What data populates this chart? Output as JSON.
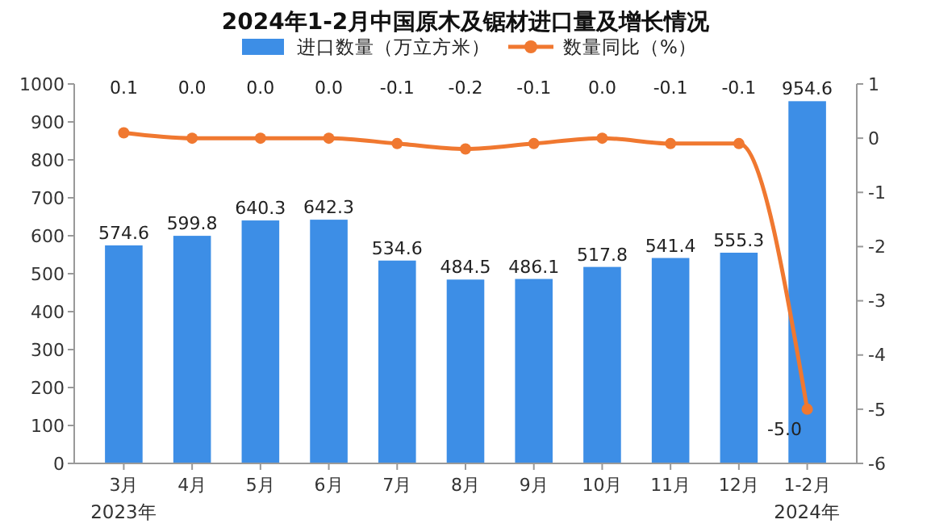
{
  "chart_data": {
    "type": "bar",
    "title": "2024年1-2月中国原木及锯材进口量及增长情况",
    "categories": [
      "3月",
      "4月",
      "5月",
      "6月",
      "7月",
      "8月",
      "9月",
      "10月",
      "11月",
      "12月",
      "1-2月"
    ],
    "series": [
      {
        "name": "进口数量（万立方米）",
        "color": "#3d8ee6",
        "values": [
          574.6,
          599.8,
          640.3,
          642.3,
          534.6,
          484.5,
          486.1,
          517.8,
          541.4,
          555.3,
          954.6
        ],
        "value_labels": [
          "574.6",
          "599.8",
          "640.3",
          "642.3",
          "534.6",
          "484.5",
          "486.1",
          "517.8",
          "541.4",
          "555.3",
          "954.6"
        ]
      },
      {
        "name": "数量同比（%）",
        "type": "line",
        "axis": "y2",
        "color": "#f07830",
        "marker": "circle",
        "values": [
          0.1,
          0.0,
          0.0,
          0.0,
          -0.1,
          -0.2,
          -0.1,
          0.0,
          -0.1,
          -0.1,
          -5.0
        ],
        "value_labels": [
          "0.1",
          "0.0",
          "0.0",
          "0.0",
          "-0.1",
          "-0.2",
          "-0.1",
          "0.0",
          "-0.1",
          "-0.1",
          "-5.0"
        ]
      }
    ],
    "ylim": [
      0,
      1000
    ],
    "yticks": [
      0,
      100,
      200,
      300,
      400,
      500,
      600,
      700,
      800,
      900,
      1000
    ],
    "y2lim": [
      -6,
      1
    ],
    "y2ticks": [
      -6,
      -5,
      -4,
      -3,
      -2,
      -1,
      0,
      1
    ],
    "legend": "top",
    "annotations": [
      "2023年",
      "2024年"
    ]
  }
}
